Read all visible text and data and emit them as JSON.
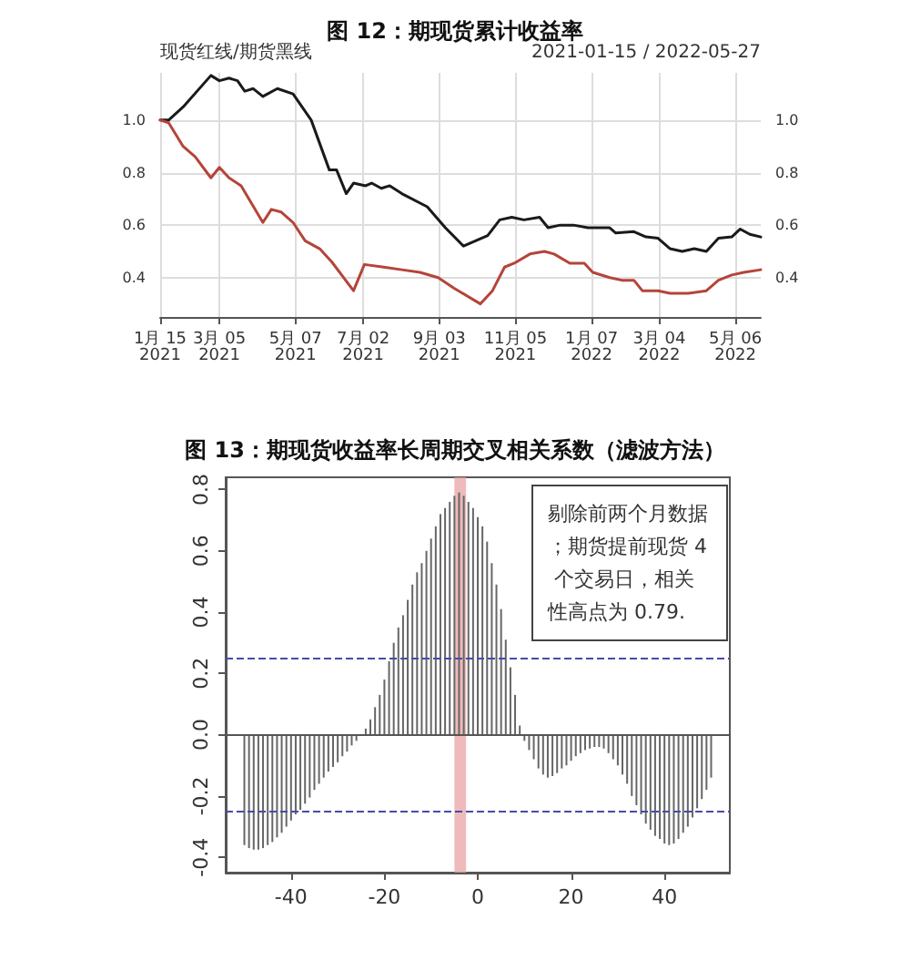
{
  "chart_data": [
    {
      "type": "line",
      "title": "图 12：期现货累计收益率",
      "annotations": [
        "现货红线/期货黑线",
        "2021-01-15 / 2022-05-27"
      ],
      "xlim": [
        "2021-01-15",
        "2022-05-27"
      ],
      "xticks": [
        {
          "value": "2021-01-15",
          "label": "1月 15 2021"
        },
        {
          "value": "2021-03-05",
          "label": "3月 05 2021"
        },
        {
          "value": "2021-05-07",
          "label": "5月 07 2021"
        },
        {
          "value": "2021-07-02",
          "label": "7月 02 2021"
        },
        {
          "value": "2021-09-03",
          "label": "9月 03 2021"
        },
        {
          "value": "2021-11-05",
          "label": "11月 05 2021"
        },
        {
          "value": "2022-01-07",
          "label": "1月 07 2022"
        },
        {
          "value": "2022-03-04",
          "label": "3月 04 2022"
        },
        {
          "value": "2022-05-06",
          "label": "5月 06 2022"
        }
      ],
      "ylim": [
        0.25,
        1.18
      ],
      "yticks": [
        {
          "value": 0.4,
          "label": "0.4"
        },
        {
          "value": 0.6,
          "label": "0.6"
        },
        {
          "value": 0.8,
          "label": "0.8"
        },
        {
          "value": 1.0,
          "label": "1.0"
        }
      ],
      "y2lim": [
        0.25,
        1.18
      ],
      "y2ticks": [
        {
          "value": 0.4,
          "label": "0.4"
        },
        {
          "value": 0.6,
          "label": "0.6"
        },
        {
          "value": 0.8,
          "label": "0.8"
        },
        {
          "value": 1.0,
          "label": "1.0"
        }
      ],
      "grid": true,
      "series": [
        {
          "color": "#1a1a1a",
          "x": [
            "2021-01-15",
            "2021-01-22",
            "2021-02-03",
            "2021-02-26",
            "2021-03-05",
            "2021-03-13",
            "2021-03-20",
            "2021-03-26",
            "2021-04-02",
            "2021-04-10",
            "2021-04-22",
            "2021-05-05",
            "2021-05-20",
            "2021-06-04",
            "2021-06-10",
            "2021-06-18",
            "2021-06-24",
            "2021-07-04",
            "2021-07-09",
            "2021-07-17",
            "2021-07-24",
            "2021-08-03",
            "2021-08-24",
            "2021-09-08",
            "2021-09-23",
            "2021-10-03",
            "2021-10-13",
            "2021-10-23",
            "2021-11-02",
            "2021-11-12",
            "2021-11-25",
            "2021-12-02",
            "2021-12-12",
            "2021-12-23",
            "2022-01-04",
            "2022-01-22",
            "2022-01-27",
            "2022-02-11",
            "2022-02-21",
            "2022-03-03",
            "2022-03-13",
            "2022-03-23",
            "2022-04-02",
            "2022-04-12",
            "2022-04-22",
            "2022-05-03",
            "2022-05-10",
            "2022-05-18",
            "2022-05-27"
          ],
          "values": [
            1.0,
            1.0,
            1.05,
            1.17,
            1.15,
            1.16,
            1.15,
            1.11,
            1.12,
            1.09,
            1.12,
            1.1,
            1.0,
            0.81,
            0.81,
            0.72,
            0.76,
            0.75,
            0.76,
            0.74,
            0.75,
            0.72,
            0.67,
            0.59,
            0.52,
            0.54,
            0.56,
            0.62,
            0.63,
            0.62,
            0.63,
            0.59,
            0.6,
            0.6,
            0.59,
            0.59,
            0.57,
            0.575,
            0.555,
            0.55,
            0.51,
            0.5,
            0.51,
            0.5,
            0.55,
            0.555,
            0.585,
            0.565,
            0.555
          ]
        },
        {
          "color": "#b5443a",
          "x": [
            "2021-01-15",
            "2021-01-22",
            "2021-02-03",
            "2021-02-13",
            "2021-02-26",
            "2021-03-05",
            "2021-03-13",
            "2021-03-23",
            "2021-04-10",
            "2021-04-17",
            "2021-04-25",
            "2021-05-05",
            "2021-05-15",
            "2021-05-27",
            "2021-06-06",
            "2021-06-24",
            "2021-07-03",
            "2021-07-19",
            "2021-08-03",
            "2021-08-18",
            "2021-09-02",
            "2021-09-15",
            "2021-10-07",
            "2021-10-17",
            "2021-10-27",
            "2021-11-04",
            "2021-11-17",
            "2021-11-29",
            "2021-12-07",
            "2021-12-20",
            "2022-01-01",
            "2022-01-08",
            "2022-01-22",
            "2022-02-01",
            "2022-02-11",
            "2022-02-18",
            "2022-03-03",
            "2022-03-13",
            "2022-03-28",
            "2022-04-12",
            "2022-04-22",
            "2022-05-03",
            "2022-05-13",
            "2022-05-27"
          ],
          "values": [
            1.0,
            0.99,
            0.9,
            0.86,
            0.78,
            0.82,
            0.78,
            0.75,
            0.61,
            0.66,
            0.65,
            0.61,
            0.54,
            0.51,
            0.46,
            0.35,
            0.45,
            0.44,
            0.43,
            0.42,
            0.4,
            0.36,
            0.3,
            0.35,
            0.44,
            0.455,
            0.49,
            0.5,
            0.49,
            0.455,
            0.455,
            0.42,
            0.4,
            0.39,
            0.39,
            0.35,
            0.35,
            0.34,
            0.34,
            0.35,
            0.39,
            0.41,
            0.42,
            0.43
          ]
        }
      ]
    },
    {
      "type": "bar",
      "title": "图 13：期现货收益率长周期交叉相关系数（滤波方法）",
      "annotations": [
        "剔除前两个月数据；期货提前现货 4 个交易日，相关性高点为 0.79."
      ],
      "xlim": [
        -54,
        54
      ],
      "xticks": [
        -40,
        -20,
        0,
        20,
        40
      ],
      "ylim": [
        -0.45,
        0.84
      ],
      "yticks": [
        {
          "value": -0.4,
          "label": "-0.4"
        },
        {
          "value": -0.2,
          "label": "-0.2"
        },
        {
          "value": 0,
          "label": "0.0"
        },
        {
          "value": 0.2,
          "label": "0.2"
        },
        {
          "value": 0.4,
          "label": "0.4"
        },
        {
          "value": 0.6,
          "label": "0.6"
        },
        {
          "value": 0.8,
          "label": "0.8"
        }
      ],
      "ref_lines": [
        {
          "axis": "y",
          "value": 0.25,
          "color": "#4a4aa8",
          "line_style": "dashed"
        },
        {
          "axis": "y",
          "value": -0.25,
          "color": "#4a4aa8",
          "line_style": "dashed"
        },
        {
          "axis": "y",
          "value": 0,
          "color": "#555555",
          "line_style": "solid"
        }
      ],
      "bands": [
        {
          "axis": "x",
          "from": -5,
          "to": -2.5,
          "color": "#e8a3a3"
        }
      ],
      "series": [
        {
          "color": "#666666",
          "x": [
            -50,
            -49,
            -48,
            -47,
            -46,
            -45,
            -44,
            -43,
            -42,
            -41,
            -40,
            -39,
            -38,
            -37,
            -36,
            -35,
            -34,
            -33,
            -32,
            -31,
            -30,
            -29,
            -28,
            -27,
            -26,
            -25,
            -24,
            -23,
            -22,
            -21,
            -20,
            -19,
            -18,
            -17,
            -16,
            -15,
            -14,
            -13,
            -12,
            -11,
            -10,
            -9,
            -8,
            -7,
            -6,
            -5,
            -4,
            -3,
            -2,
            -1,
            0,
            1,
            2,
            3,
            4,
            5,
            6,
            7,
            8,
            9,
            10,
            11,
            12,
            13,
            14,
            15,
            16,
            17,
            18,
            19,
            20,
            21,
            22,
            23,
            24,
            25,
            26,
            27,
            28,
            29,
            30,
            31,
            32,
            33,
            34,
            35,
            36,
            37,
            38,
            39,
            40,
            41,
            42,
            43,
            44,
            45,
            46,
            47,
            48,
            49,
            50
          ],
          "values": [
            -0.36,
            -0.37,
            -0.375,
            -0.375,
            -0.37,
            -0.36,
            -0.35,
            -0.335,
            -0.32,
            -0.3,
            -0.28,
            -0.26,
            -0.245,
            -0.225,
            -0.205,
            -0.18,
            -0.16,
            -0.14,
            -0.12,
            -0.105,
            -0.09,
            -0.07,
            -0.055,
            -0.035,
            -0.02,
            0.0,
            0.02,
            0.05,
            0.09,
            0.13,
            0.18,
            0.24,
            0.3,
            0.35,
            0.39,
            0.44,
            0.49,
            0.53,
            0.56,
            0.6,
            0.64,
            0.68,
            0.72,
            0.74,
            0.76,
            0.78,
            0.79,
            0.78,
            0.76,
            0.74,
            0.71,
            0.68,
            0.63,
            0.56,
            0.49,
            0.41,
            0.31,
            0.22,
            0.13,
            0.03,
            -0.02,
            -0.05,
            -0.08,
            -0.11,
            -0.13,
            -0.14,
            -0.135,
            -0.125,
            -0.11,
            -0.1,
            -0.085,
            -0.07,
            -0.06,
            -0.05,
            -0.045,
            -0.04,
            -0.04,
            -0.045,
            -0.06,
            -0.08,
            -0.1,
            -0.13,
            -0.16,
            -0.2,
            -0.23,
            -0.26,
            -0.29,
            -0.31,
            -0.33,
            -0.34,
            -0.355,
            -0.36,
            -0.355,
            -0.34,
            -0.32,
            -0.3,
            -0.27,
            -0.24,
            -0.21,
            -0.18,
            -0.14
          ]
        }
      ]
    }
  ]
}
